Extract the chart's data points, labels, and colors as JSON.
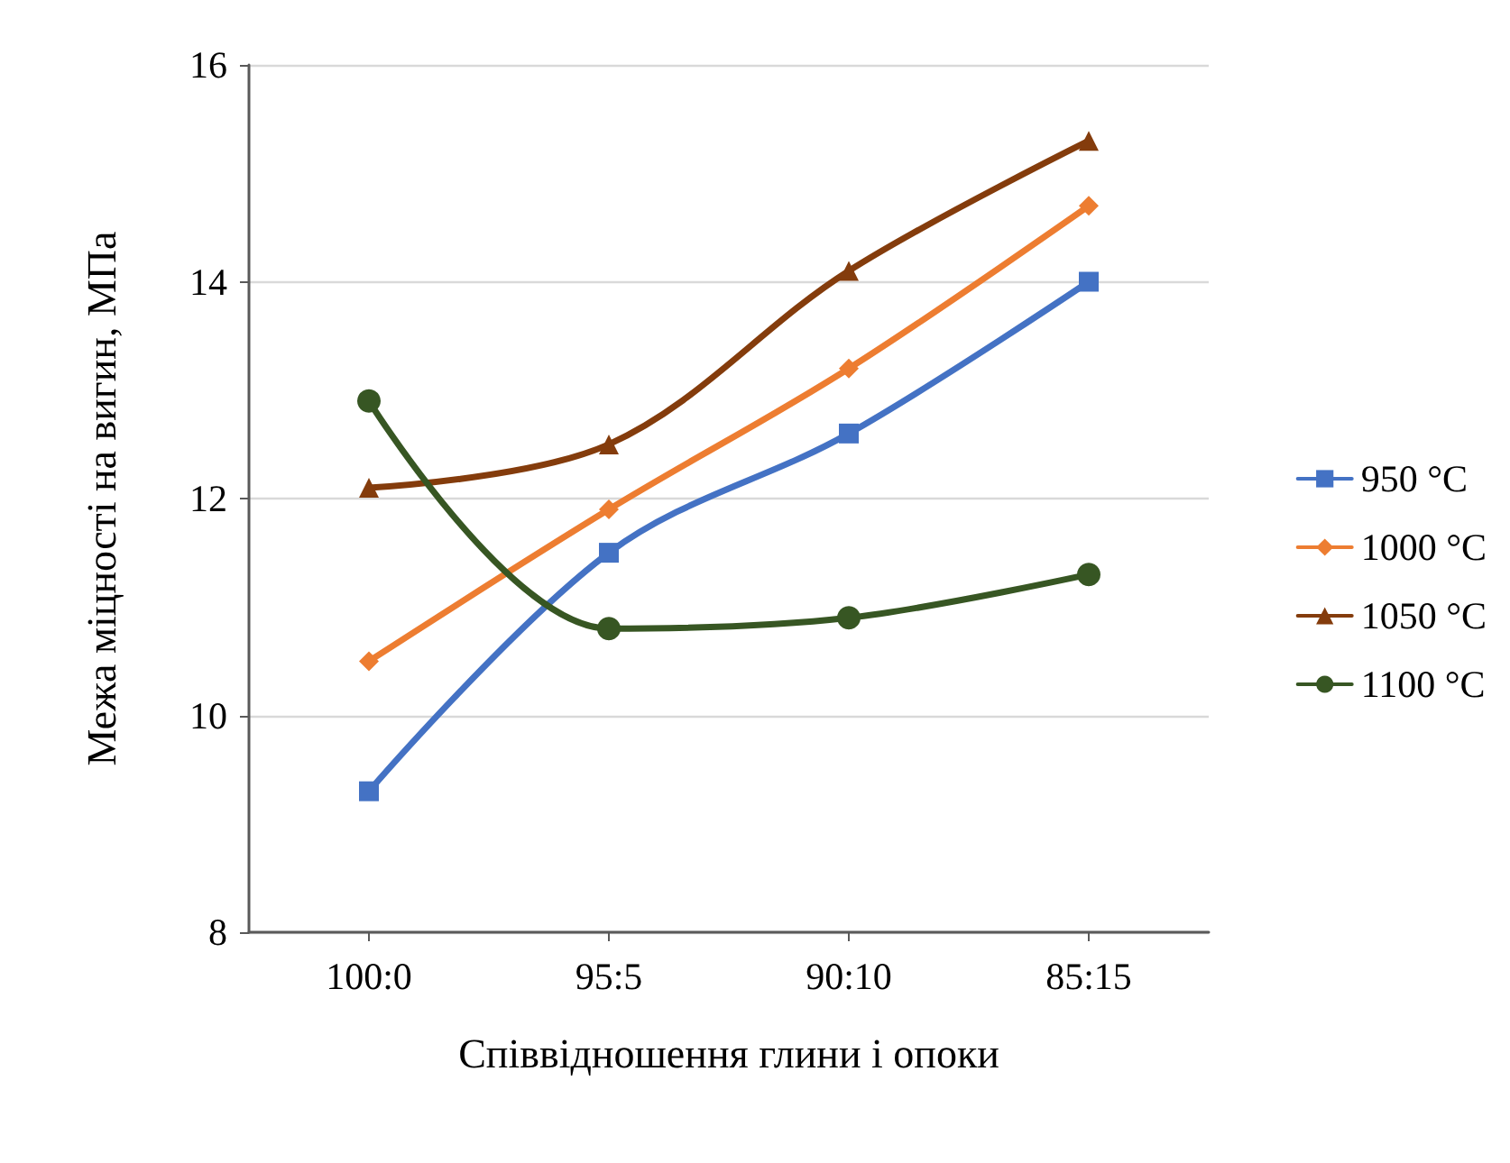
{
  "chart_data": {
    "type": "line",
    "xlabel": "Співвідношення глини і опоки",
    "ylabel": "Межа міцності на вигин, МПа",
    "categories": [
      "100:0",
      "95:5",
      "90:10",
      "85:15"
    ],
    "series": [
      {
        "name": "950 °C",
        "color": "#4472c4",
        "marker": "square",
        "values": [
          9.3,
          11.5,
          12.6,
          14.0
        ]
      },
      {
        "name": "1000 °C",
        "color": "#ed7d31",
        "marker": "diamond",
        "values": [
          10.5,
          11.9,
          13.2,
          14.7
        ]
      },
      {
        "name": "1050 °C",
        "color": "#843c0c",
        "marker": "triangle",
        "values": [
          12.1,
          12.5,
          14.1,
          15.3
        ]
      },
      {
        "name": "1100 °C",
        "color": "#375623",
        "marker": "circle",
        "values": [
          12.9,
          10.8,
          10.9,
          11.3
        ]
      }
    ],
    "ylim": [
      8,
      16
    ],
    "yticks": [
      8,
      10,
      12,
      14,
      16
    ],
    "grid": "y",
    "legend": "right",
    "line_style": "solid"
  }
}
